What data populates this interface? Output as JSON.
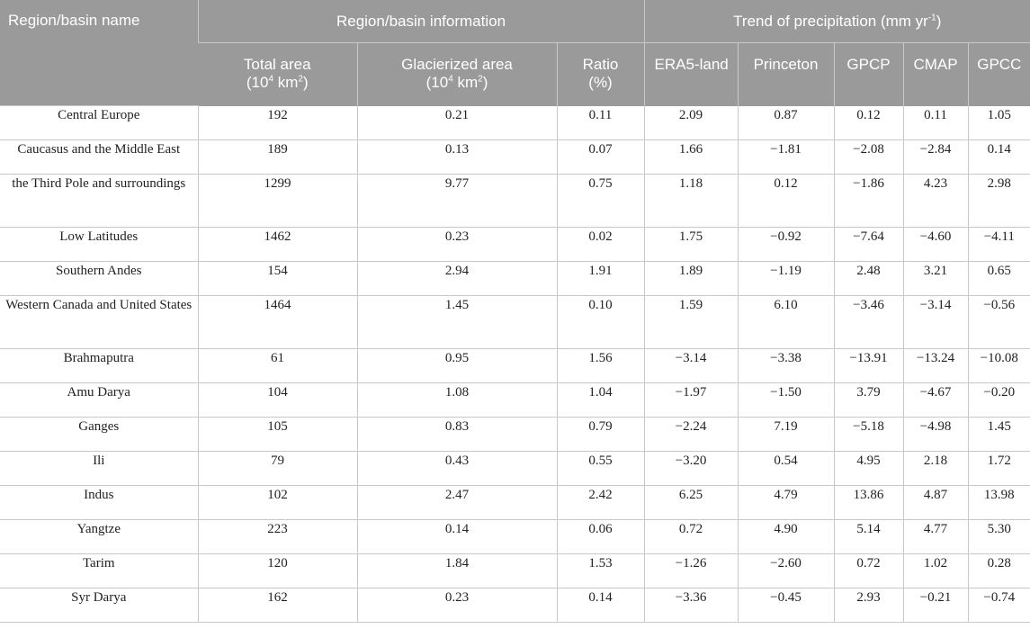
{
  "header": {
    "region_name": "Region/basin name",
    "region_info": "Region/basin information",
    "trend": "Trend of precipitation (mm yr",
    "trend_sup": "-1",
    "trend_close": ")",
    "total_area": "Total area",
    "total_area_unit_a": "(10",
    "total_area_unit_sup": "4",
    "total_area_unit_b": " km",
    "total_area_unit_sup2": "2",
    "total_area_unit_c": ")",
    "glacier_area": "Glacierized area",
    "glacier_area_unit_a": "(10",
    "glacier_area_unit_sup": "4",
    "glacier_area_unit_b": " km",
    "glacier_area_unit_sup2": "2",
    "glacier_area_unit_c": ")",
    "ratio": "Ratio",
    "ratio_unit": "(%)",
    "era5": "ERA5-land",
    "princeton": "Princeton",
    "gpcp": "GPCP",
    "cmap": "CMAP",
    "gpcc": "GPCC"
  },
  "rows": [
    {
      "name": "Central Europe",
      "total": "192",
      "glacier": "0.21",
      "ratio": "0.11",
      "era5": "2.09",
      "princeton": "0.87",
      "gpcp": "0.12",
      "cmap": "0.11",
      "gpcc": "1.05"
    },
    {
      "name": "Caucasus and the Middle East",
      "total": "189",
      "glacier": "0.13",
      "ratio": "0.07",
      "era5": "1.66",
      "princeton": "−1.81",
      "gpcp": "−2.08",
      "cmap": "−2.84",
      "gpcc": "0.14"
    },
    {
      "name": "the Third Pole and surroundings",
      "total": "1299",
      "glacier": "9.77",
      "ratio": "0.75",
      "era5": "1.18",
      "princeton": "0.12",
      "gpcp": "−1.86",
      "cmap": "4.23",
      "gpcc": "2.98"
    },
    {
      "name": "Low Latitudes",
      "total": "1462",
      "glacier": "0.23",
      "ratio": "0.02",
      "era5": "1.75",
      "princeton": "−0.92",
      "gpcp": "−7.64",
      "cmap": "−4.60",
      "gpcc": "−4.11"
    },
    {
      "name": "Southern Andes",
      "total": "154",
      "glacier": "2.94",
      "ratio": "1.91",
      "era5": "1.89",
      "princeton": "−1.19",
      "gpcp": "2.48",
      "cmap": "3.21",
      "gpcc": "0.65"
    },
    {
      "name": "Western Canada and United States",
      "total": "1464",
      "glacier": "1.45",
      "ratio": "0.10",
      "era5": "1.59",
      "princeton": "6.10",
      "gpcp": "−3.46",
      "cmap": "−3.14",
      "gpcc": "−0.56"
    },
    {
      "name": "Brahmaputra",
      "total": "61",
      "glacier": "0.95",
      "ratio": "1.56",
      "era5": "−3.14",
      "princeton": "−3.38",
      "gpcp": "−13.91",
      "cmap": "−13.24",
      "gpcc": "−10.08"
    },
    {
      "name": "Amu Darya",
      "total": "104",
      "glacier": "1.08",
      "ratio": "1.04",
      "era5": "−1.97",
      "princeton": "−1.50",
      "gpcp": "3.79",
      "cmap": "−4.67",
      "gpcc": "−0.20"
    },
    {
      "name": "Ganges",
      "total": "105",
      "glacier": "0.83",
      "ratio": "0.79",
      "era5": "−2.24",
      "princeton": "7.19",
      "gpcp": "−5.18",
      "cmap": "−4.98",
      "gpcc": "1.45"
    },
    {
      "name": "Ili",
      "total": "79",
      "glacier": "0.43",
      "ratio": "0.55",
      "era5": "−3.20",
      "princeton": "0.54",
      "gpcp": "4.95",
      "cmap": "2.18",
      "gpcc": "1.72"
    },
    {
      "name": "Indus",
      "total": "102",
      "glacier": "2.47",
      "ratio": "2.42",
      "era5": "6.25",
      "princeton": "4.79",
      "gpcp": "13.86",
      "cmap": "4.87",
      "gpcc": "13.98"
    },
    {
      "name": "Yangtze",
      "total": "223",
      "glacier": "0.14",
      "ratio": "0.06",
      "era5": "0.72",
      "princeton": "4.90",
      "gpcp": "5.14",
      "cmap": "4.77",
      "gpcc": "5.30"
    },
    {
      "name": "Tarim",
      "total": "120",
      "glacier": "1.84",
      "ratio": "1.53",
      "era5": "−1.26",
      "princeton": "−2.60",
      "gpcp": "0.72",
      "cmap": "1.02",
      "gpcc": "0.28"
    },
    {
      "name": "Syr Darya",
      "total": "162",
      "glacier": "0.23",
      "ratio": "0.14",
      "era5": "−3.36",
      "princeton": "−0.45",
      "gpcp": "2.93",
      "cmap": "−0.21",
      "gpcc": "−0.74"
    }
  ]
}
